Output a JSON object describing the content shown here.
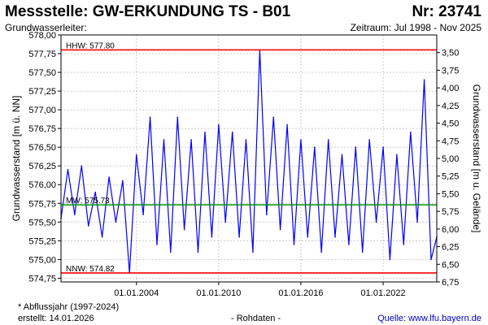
{
  "header": {
    "station": "Messstelle: GW-ERKUNDUNG TS - B01",
    "number": "Nr: 23741",
    "aquifer": "Grundwasserleiter:",
    "period": "Zeitraum: Jul 1998 - Nov 2025"
  },
  "footer": {
    "footnote": "* Abflussjahr (1997-2024)",
    "created": "erstellt:  14.01.2026",
    "rawdata": "- Rohdaten -",
    "source": "Quelle: www.lfu.bayern.de"
  },
  "chart_data": {
    "type": "line",
    "title": "",
    "xlabel": "",
    "ylabel": "Grundwasserstand [m ü. NN]",
    "ylabel_right": "Grundwasserstand [m u. Gelände]",
    "ylim": [
      574.7,
      578.0
    ],
    "ylim_right": [
      6.75,
      3.25
    ],
    "xlim": [
      "1998-07-01",
      "2025-11-30"
    ],
    "x_ticks": [
      "01.01.2004",
      "01.01.2010",
      "01.01.2016",
      "01.01.2022"
    ],
    "y_ticks": [
      "578,00",
      "577,75",
      "577,50",
      "577,25",
      "577,00",
      "576,75",
      "576,50",
      "576,25",
      "576,00",
      "575,75",
      "575,50",
      "575,25",
      "575,00",
      "574,75"
    ],
    "y_ticks_right": [
      "3,50",
      "3,75",
      "4,00",
      "4,25",
      "4,50",
      "4,75",
      "5,00",
      "5,25",
      "5,50",
      "5,75",
      "6,00",
      "6,25",
      "6,50",
      "6,75"
    ],
    "grid": true,
    "reference_lines": [
      {
        "label": "HHW: 577.80",
        "value": 577.8,
        "color": "#ff0000"
      },
      {
        "label": "MW: 575.73",
        "value": 575.73,
        "color": "#009900"
      },
      {
        "label": "NNW: 574.82",
        "value": 574.82,
        "color": "#ff0000"
      }
    ],
    "series": [
      {
        "color": "#0000ff",
        "x": [
          "1998-07-01",
          "1999-01-01",
          "1999-07-01",
          "2000-01-01",
          "2000-07-01",
          "2001-01-01",
          "2001-07-01",
          "2002-01-01",
          "2002-07-01",
          "2003-01-01",
          "2003-07-01",
          "2004-01-01",
          "2004-07-01",
          "2005-01-01",
          "2005-07-01",
          "2006-01-01",
          "2006-07-01",
          "2007-01-01",
          "2007-07-01",
          "2008-01-01",
          "2008-07-01",
          "2009-01-01",
          "2009-07-01",
          "2010-01-01",
          "2010-07-01",
          "2011-01-01",
          "2011-07-01",
          "2012-01-01",
          "2012-07-01",
          "2013-01-01",
          "2013-07-01",
          "2014-01-01",
          "2014-07-01",
          "2015-01-01",
          "2015-07-01",
          "2016-01-01",
          "2016-07-01",
          "2017-01-01",
          "2017-07-01",
          "2018-01-01",
          "2018-07-01",
          "2019-01-01",
          "2019-07-01",
          "2020-01-01",
          "2020-07-01",
          "2021-01-01",
          "2021-07-01",
          "2022-01-01",
          "2022-07-01",
          "2023-01-01",
          "2023-07-01",
          "2024-01-01",
          "2024-07-01",
          "2025-01-01",
          "2025-07-01",
          "2025-11-30"
        ],
        "values": [
          575.55,
          576.2,
          575.6,
          576.25,
          575.45,
          575.9,
          575.3,
          576.1,
          575.5,
          576.05,
          574.82,
          576.4,
          575.6,
          576.9,
          575.2,
          576.6,
          575.1,
          576.9,
          575.4,
          576.6,
          575.1,
          576.7,
          575.3,
          576.8,
          575.5,
          576.7,
          575.3,
          576.6,
          575.1,
          577.8,
          575.6,
          576.9,
          575.4,
          576.8,
          575.2,
          576.6,
          575.3,
          576.5,
          575.1,
          576.6,
          575.3,
          576.4,
          575.2,
          576.5,
          575.1,
          576.6,
          575.5,
          576.5,
          575.0,
          576.4,
          575.2,
          576.7,
          575.5,
          577.4,
          575.0,
          575.3
        ]
      }
    ]
  }
}
